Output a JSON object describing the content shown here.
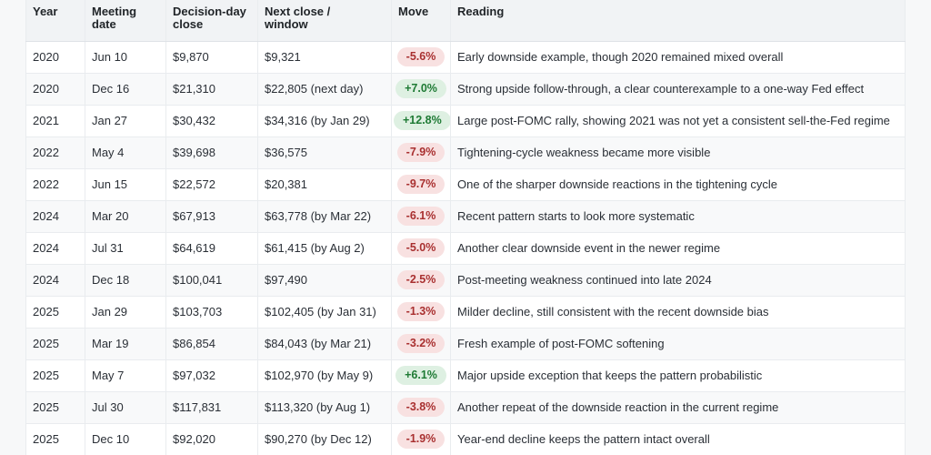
{
  "chart_data": {
    "type": "table",
    "columns": [
      "Year",
      "Meeting date",
      "Decision-day close",
      "Next close / window",
      "Move",
      "Reading"
    ],
    "rows": [
      [
        "2020",
        "Jun 10",
        "$9,870",
        "$9,321",
        "-5.6%",
        "Early downside example, though 2020 remained mixed overall"
      ],
      [
        "2020",
        "Dec 16",
        "$21,310",
        "$22,805 (next day)",
        "+7.0%",
        "Strong upside follow-through, a clear counterexample to a one-way Fed effect"
      ],
      [
        "2021",
        "Jan 27",
        "$30,432",
        "$34,316 (by Jan 29)",
        "+12.8%",
        "Large post-FOMC rally, showing 2021 was not yet a consistent sell-the-Fed regime"
      ],
      [
        "2022",
        "May 4",
        "$39,698",
        "$36,575",
        "-7.9%",
        "Tightening-cycle weakness became more visible"
      ],
      [
        "2022",
        "Jun 15",
        "$22,572",
        "$20,381",
        "-9.7%",
        "One of the sharper downside reactions in the tightening cycle"
      ],
      [
        "2024",
        "Mar 20",
        "$67,913",
        "$63,778 (by Mar 22)",
        "-6.1%",
        "Recent pattern starts to look more systematic"
      ],
      [
        "2024",
        "Jul 31",
        "$64,619",
        "$61,415 (by Aug 2)",
        "-5.0%",
        "Another clear downside event in the newer regime"
      ],
      [
        "2024",
        "Dec 18",
        "$100,041",
        "$97,490",
        "-2.5%",
        "Post-meeting weakness continued into late 2024"
      ],
      [
        "2025",
        "Jan 29",
        "$103,703",
        "$102,405 (by Jan 31)",
        "-1.3%",
        "Milder decline, still consistent with the recent downside bias"
      ],
      [
        "2025",
        "Mar 19",
        "$86,854",
        "$84,043 (by Mar 21)",
        "-3.2%",
        "Fresh example of post-FOMC softening"
      ],
      [
        "2025",
        "May 7",
        "$97,032",
        "$102,970 (by May 9)",
        "+6.1%",
        "Major upside exception that keeps the pattern probabilistic"
      ],
      [
        "2025",
        "Jul 30",
        "$117,831",
        "$113,320 (by Aug 1)",
        "-3.8%",
        "Another repeat of the downside reaction in the current regime"
      ],
      [
        "2025",
        "Dec 10",
        "$92,020",
        "$90,270 (by Dec 12)",
        "-1.9%",
        "Year-end decline keeps the pattern intact overall"
      ]
    ]
  },
  "colors": {
    "page-bg": "#f7f8f9",
    "header-bg": "#f1f3f5",
    "stripe-bg": "#f8f9fa",
    "border": "#e9ecef",
    "text": "#212529",
    "move-up-bg": "#def0e2",
    "move-up-text": "#1e7a34",
    "move-down-bg": "#f8e1e1",
    "move-down-text": "#a93030"
  }
}
